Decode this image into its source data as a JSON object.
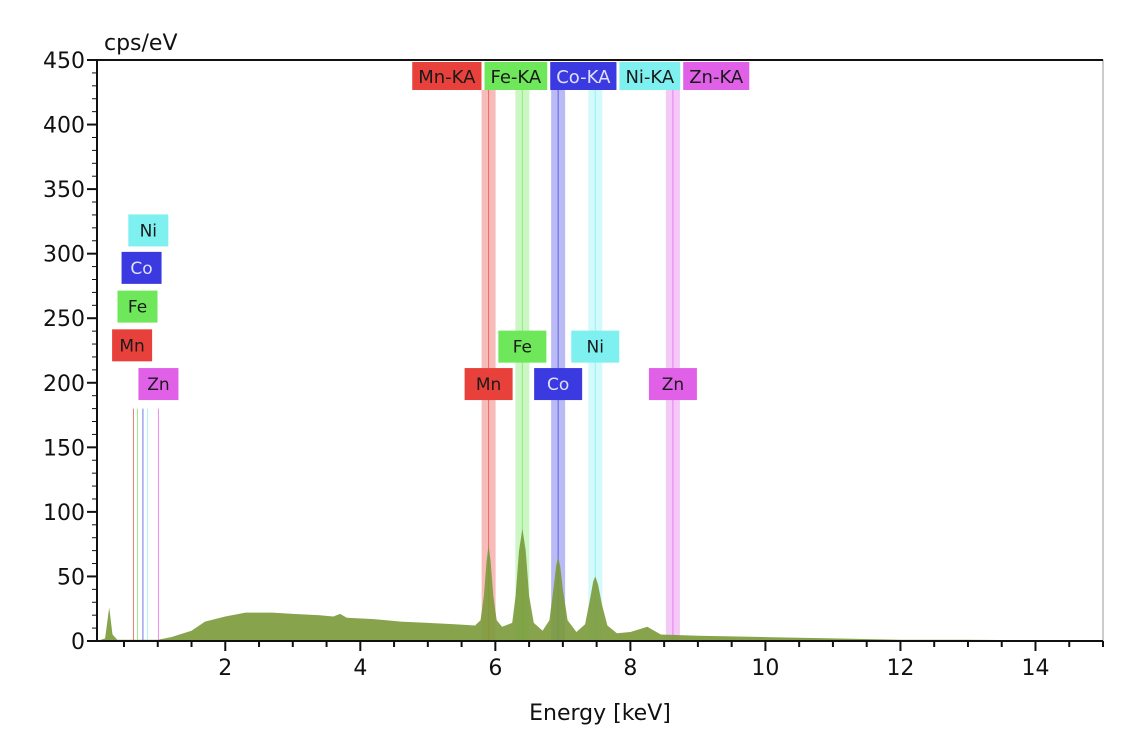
{
  "chart_data": {
    "type": "area",
    "xlabel": "Energy [keV]",
    "ylabel": "cps/eV",
    "xlim": [
      0.1,
      15
    ],
    "ylim": [
      0,
      450
    ],
    "xticks": [
      2,
      4,
      6,
      8,
      10,
      12,
      14
    ],
    "yticks": [
      0,
      50,
      100,
      150,
      200,
      250,
      300,
      350,
      400,
      450
    ],
    "grid": false,
    "spectrum_color": "#7a9a3a",
    "spectrum": [
      [
        0.1,
        0
      ],
      [
        0.22,
        2
      ],
      [
        0.28,
        26
      ],
      [
        0.33,
        5
      ],
      [
        0.4,
        1
      ],
      [
        0.6,
        1
      ],
      [
        1.0,
        1
      ],
      [
        1.2,
        3
      ],
      [
        1.5,
        8
      ],
      [
        1.7,
        15
      ],
      [
        2.0,
        19
      ],
      [
        2.3,
        22
      ],
      [
        2.7,
        22
      ],
      [
        3.0,
        21
      ],
      [
        3.4,
        20
      ],
      [
        3.6,
        19
      ],
      [
        3.7,
        21
      ],
      [
        3.8,
        18
      ],
      [
        4.2,
        17
      ],
      [
        4.6,
        15
      ],
      [
        5.0,
        14
      ],
      [
        5.4,
        13
      ],
      [
        5.7,
        12
      ],
      [
        5.78,
        16
      ],
      [
        5.83,
        35
      ],
      [
        5.87,
        62
      ],
      [
        5.9,
        74
      ],
      [
        5.93,
        62
      ],
      [
        5.97,
        35
      ],
      [
        6.02,
        16
      ],
      [
        6.1,
        11
      ],
      [
        6.25,
        14
      ],
      [
        6.3,
        35
      ],
      [
        6.35,
        70
      ],
      [
        6.4,
        87
      ],
      [
        6.45,
        70
      ],
      [
        6.5,
        35
      ],
      [
        6.57,
        14
      ],
      [
        6.7,
        8
      ],
      [
        6.8,
        16
      ],
      [
        6.86,
        40
      ],
      [
        6.9,
        58
      ],
      [
        6.93,
        65
      ],
      [
        6.96,
        58
      ],
      [
        7.0,
        40
      ],
      [
        7.07,
        16
      ],
      [
        7.2,
        7
      ],
      [
        7.33,
        13
      ],
      [
        7.4,
        32
      ],
      [
        7.45,
        46
      ],
      [
        7.48,
        50
      ],
      [
        7.52,
        44
      ],
      [
        7.58,
        28
      ],
      [
        7.66,
        12
      ],
      [
        7.8,
        6
      ],
      [
        8.0,
        7
      ],
      [
        8.25,
        11
      ],
      [
        8.45,
        5
      ],
      [
        9,
        4
      ],
      [
        10,
        3
      ],
      [
        11,
        2
      ],
      [
        12,
        1
      ],
      [
        13,
        1
      ],
      [
        15,
        0
      ]
    ],
    "elements": [
      {
        "symbol": "Mn",
        "color": "#e8403a",
        "text_color": "#1a1a1a",
        "k_line": "Mn-KA",
        "k_kev": 5.9,
        "l_kev": 0.64,
        "l_label_kev": 0.62,
        "l_label_cps": 229,
        "k_label_cps": 199
      },
      {
        "symbol": "Fe",
        "color": "#6ee85a",
        "text_color": "#1a1a1a",
        "k_line": "Fe-KA",
        "k_kev": 6.4,
        "l_kev": 0.7,
        "l_label_kev": 0.7,
        "l_label_cps": 259,
        "k_label_cps": 228
      },
      {
        "symbol": "Co",
        "color": "#3a3ae0",
        "text_color": "#e0e0ff",
        "k_line": "Co-KA",
        "k_kev": 6.93,
        "l_kev": 0.78,
        "l_label_kev": 0.76,
        "l_label_cps": 289,
        "k_label_cps": 199
      },
      {
        "symbol": "Ni",
        "color": "#7ef0f0",
        "text_color": "#1a1a1a",
        "k_line": "Ni-KA",
        "k_kev": 7.48,
        "l_kev": 0.85,
        "l_label_kev": 0.86,
        "l_label_cps": 318,
        "k_label_cps": 228
      },
      {
        "symbol": "Zn",
        "color": "#e060e8",
        "text_color": "#1a1a1a",
        "k_line": "Zn-KA",
        "k_kev": 8.63,
        "l_kev": 1.01,
        "l_label_kev": 1.01,
        "l_label_cps": 199,
        "k_label_cps": 199
      }
    ]
  }
}
